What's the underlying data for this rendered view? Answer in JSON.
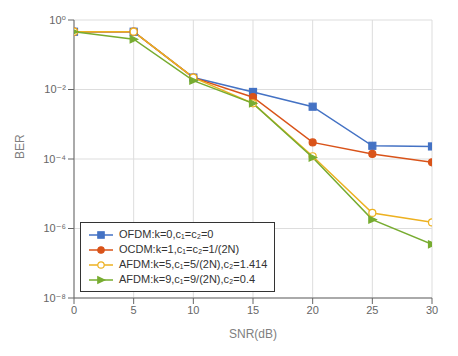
{
  "chart_data": {
    "type": "line",
    "x": [
      0,
      5,
      10,
      15,
      20,
      25,
      30
    ],
    "series": [
      {
        "name": "OFDM:k=0,c₁=c₂=0",
        "color": "#4472C4",
        "marker": "square",
        "values": [
          0.46,
          0.46,
          0.022,
          0.0085,
          0.0032,
          0.00024,
          0.00023
        ]
      },
      {
        "name": "OCDM:k=1,c₁=c₂=1/(2N)",
        "color": "#D95319",
        "marker": "circle",
        "values": [
          0.46,
          0.46,
          0.022,
          0.006,
          0.0003,
          0.00014,
          8e-05
        ]
      },
      {
        "name": "AFDM:k=5,c₁=5/(2N),c₂=1.414",
        "color": "#EDB120",
        "marker": "hollow-circle",
        "values": [
          0.46,
          0.46,
          0.022,
          0.004,
          0.00012,
          2.8e-06,
          1.5e-06
        ]
      },
      {
        "name": "AFDM:k=9,c₁=9/(2N),c₂=0.4",
        "color": "#77AC30",
        "marker": "triangle-right",
        "values": [
          0.46,
          0.28,
          0.018,
          0.004,
          0.00011,
          1.8e-06,
          3.5e-07
        ]
      }
    ],
    "xlabel": "SNR(dB)",
    "ylabel": "BER",
    "xlim": [
      0,
      30
    ],
    "ylim": [
      1e-08,
      1
    ],
    "xticks": [
      0,
      5,
      10,
      15,
      20,
      25,
      30
    ],
    "yticks": [
      {
        "value": 1e-08,
        "label": "10⁻⁸"
      },
      {
        "value": 1e-06,
        "label": "10⁻⁶"
      },
      {
        "value": 0.0001,
        "label": "10⁻⁴"
      },
      {
        "value": 0.01,
        "label": "10⁻²"
      },
      {
        "value": 1,
        "label": "10⁰"
      }
    ],
    "log": "y",
    "grid": true,
    "legend": "lower left"
  }
}
